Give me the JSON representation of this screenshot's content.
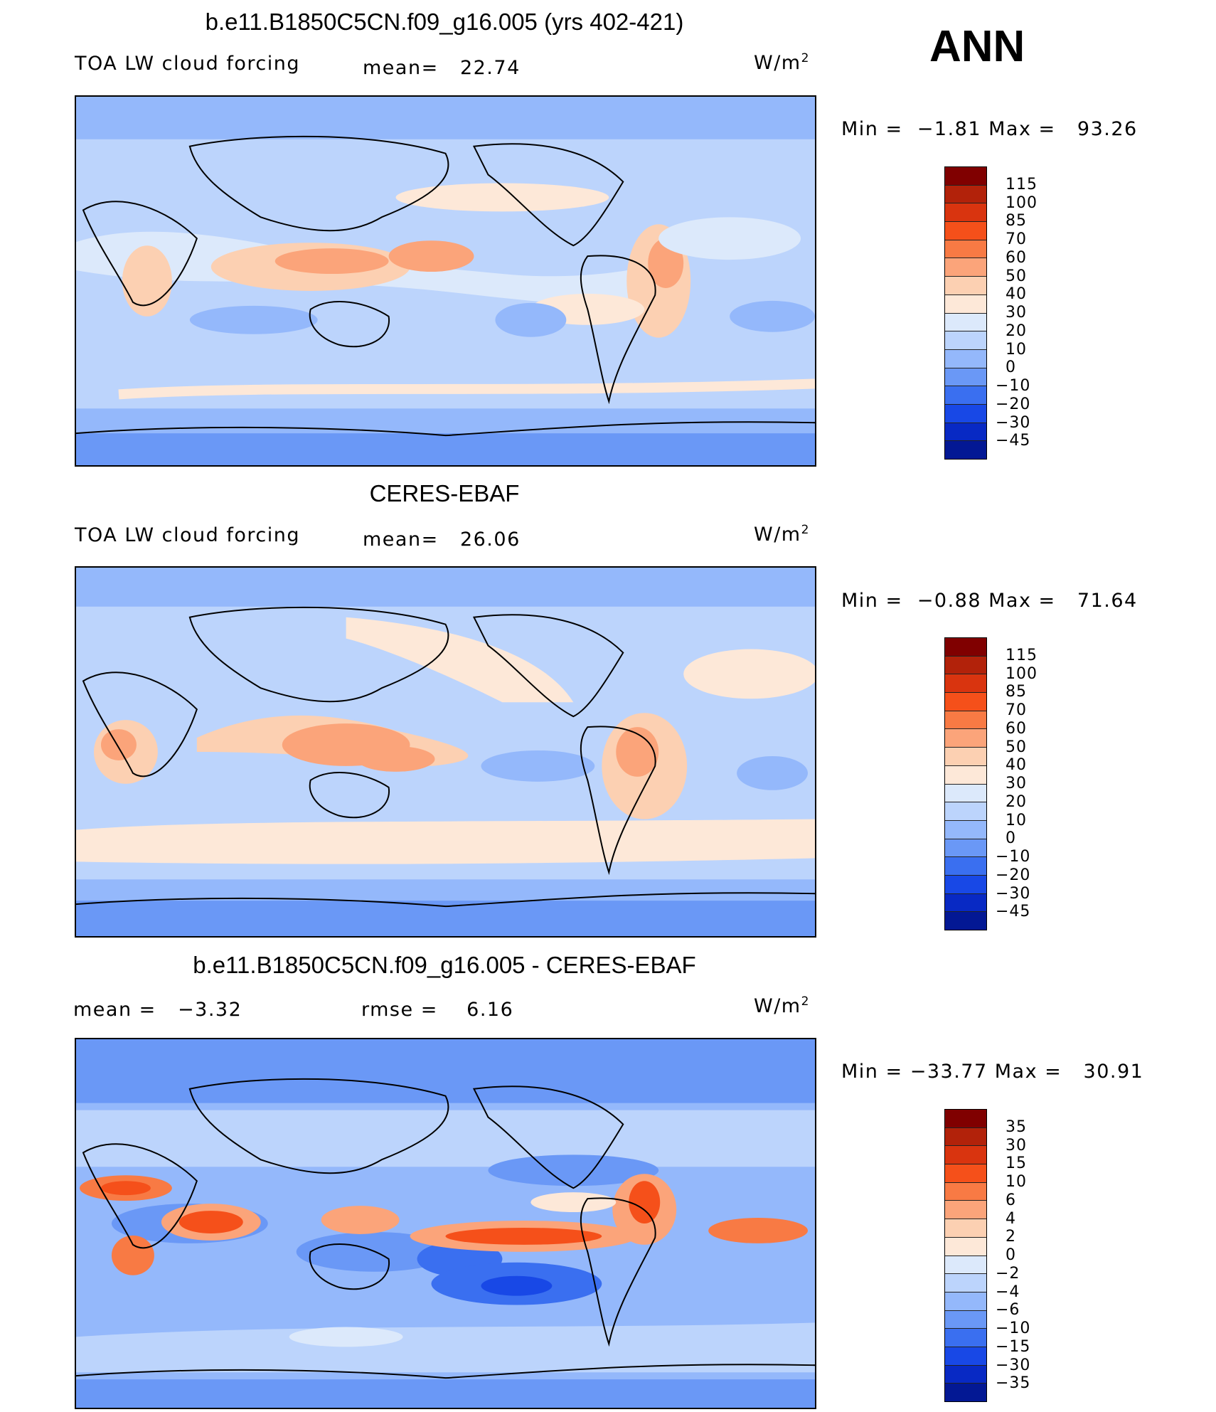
{
  "ann_label": "ANN",
  "units_base": "W/m",
  "units_exp": "2",
  "panels": [
    {
      "title": "b.e11.B1850C5CN.f09_g16.005 (yrs 402-421)",
      "left_label": "TOA LW cloud forcing",
      "mid_label": "mean=",
      "mid_value": "22.74",
      "minmax_min_label": "Min =",
      "minmax_min": "−1.81",
      "minmax_max_label": "Max =",
      "minmax_max": "93.26",
      "scheme": "abs"
    },
    {
      "title": "CERES-EBAF",
      "left_label": "TOA LW cloud forcing",
      "mid_label": "mean=",
      "mid_value": "26.06",
      "minmax_min_label": "Min =",
      "minmax_min": "−0.88",
      "minmax_max_label": "Max =",
      "minmax_max": "71.64",
      "scheme": "abs"
    },
    {
      "title": "b.e11.B1850C5CN.f09_g16.005 - CERES-EBAF",
      "left_label": "mean =",
      "left_value": "−3.32",
      "mid_label": "rmse =",
      "mid_value": "6.16",
      "minmax_min_label": "Min =",
      "minmax_min": "−33.77",
      "minmax_max_label": "Max =",
      "minmax_max": "30.91",
      "scheme": "diff"
    }
  ],
  "colorbars": {
    "abs": {
      "levels": [
        "115",
        "100",
        "85",
        "70",
        "60",
        "50",
        "40",
        "30",
        "20",
        "10",
        "0",
        "−10",
        "−20",
        "−30",
        "−45"
      ],
      "colors": [
        "#800000",
        "#b2220a",
        "#d9340f",
        "#f5501a",
        "#f87a44",
        "#fba47a",
        "#fcd0b2",
        "#fde8d8",
        "#dce9fb",
        "#bcd4fc",
        "#94b8fb",
        "#6a98f6",
        "#3a6ff0",
        "#1848e6",
        "#0829c4",
        "#031894"
      ]
    },
    "diff": {
      "levels": [
        "35",
        "30",
        "15",
        "10",
        "6",
        "4",
        "2",
        "0",
        "−2",
        "−4",
        "−6",
        "−10",
        "−15",
        "−30",
        "−35"
      ],
      "colors": [
        "#800000",
        "#b2220a",
        "#d9340f",
        "#f5501a",
        "#f87a44",
        "#fba47a",
        "#fcd0b2",
        "#fde8d8",
        "#dce9fb",
        "#bcd4fc",
        "#94b8fb",
        "#6a98f6",
        "#3a6ff0",
        "#1848e6",
        "#0829c4",
        "#031894"
      ]
    }
  },
  "chart_data": [
    {
      "type": "heatmap",
      "title": "b.e11.B1850C5CN.f09_g16.005 (yrs 402-421)",
      "variable": "TOA LW cloud forcing",
      "units": "W/m2",
      "season": "ANN",
      "mean": 22.74,
      "min": -1.81,
      "max": 93.26,
      "contour_levels": [
        -45,
        -30,
        -20,
        -10,
        0,
        10,
        20,
        30,
        40,
        50,
        60,
        70,
        85,
        100,
        115
      ]
    },
    {
      "type": "heatmap",
      "title": "CERES-EBAF",
      "variable": "TOA LW cloud forcing",
      "units": "W/m2",
      "season": "ANN",
      "mean": 26.06,
      "min": -0.88,
      "max": 71.64,
      "contour_levels": [
        -45,
        -30,
        -20,
        -10,
        0,
        10,
        20,
        30,
        40,
        50,
        60,
        70,
        85,
        100,
        115
      ]
    },
    {
      "type": "heatmap",
      "title": "b.e11.B1850C5CN.f09_g16.005 - CERES-EBAF",
      "units": "W/m2",
      "season": "ANN",
      "mean": -3.32,
      "rmse": 6.16,
      "min": -33.77,
      "max": 30.91,
      "contour_levels": [
        -35,
        -30,
        -15,
        -10,
        -6,
        -4,
        -2,
        0,
        2,
        4,
        6,
        10,
        15,
        30,
        35
      ]
    }
  ]
}
